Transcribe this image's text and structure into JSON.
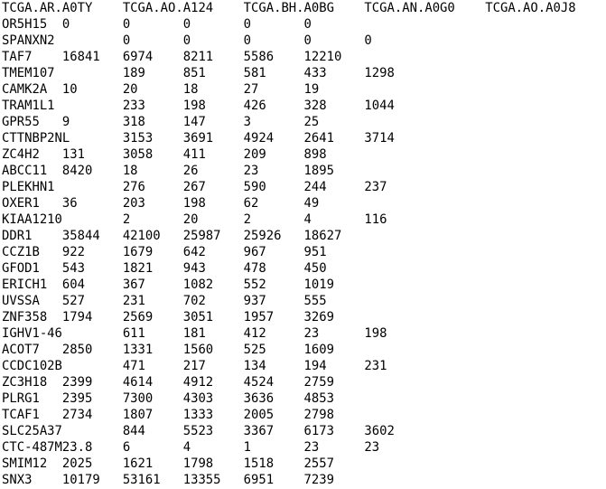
{
  "file": {
    "header": "TCGA.AR.A0TY\tTCGA.AO.A124\tTCGA.BH.A0BG\tTCGA.AN.A0G0\tTCGA.AO.A0J8",
    "lines": [
      "OR5H15\t0\t0\t0\t0\t0",
      "SPANXN2\t\t0\t0\t0\t0\t0",
      "TAF7\t16841\t6974\t8211\t5586\t12210",
      "TMEM107\t\t189\t851\t581\t433\t1298",
      "CAMK2A\t10\t20\t18\t27\t19",
      "TRAM1L1\t\t233\t198\t426\t328\t1044",
      "GPR55\t9\t318\t147\t3\t25",
      "CTTNBP2NL\t3153\t3691\t4924\t2641\t3714",
      "ZC4H2\t131\t3058\t411\t209\t898",
      "ABCC11\t8420\t18\t26\t23\t1895",
      "PLEKHN1\t\t276\t267\t590\t244\t237",
      "OXER1\t36\t203\t198\t62\t49",
      "KIAA1210\t2\t20\t2\t4\t116",
      "DDR1\t35844\t42100\t25987\t25926\t18627",
      "CCZ1B\t922\t1679\t642\t967\t951",
      "GFOD1\t543\t1821\t943\t478\t450",
      "ERICH1\t604\t367\t1082\t552\t1019",
      "UVSSA\t527\t231\t702\t937\t555",
      "ZNF358\t1794\t2569\t3051\t1957\t3269",
      "IGHV1-46\t611\t181\t412\t23\t198",
      "ACOT7\t2850\t1331\t1560\t525\t1609",
      "CCDC102B\t471\t217\t134\t194\t231",
      "ZC3H18\t2399\t4614\t4912\t4524\t2759",
      "PLRG1\t2395\t7300\t4303\t3636\t4853",
      "TCAF1\t2734\t1807\t1333\t2005\t2798",
      "SLC25A37\t844\t5523\t3367\t6173\t3602",
      "CTC-487M23.8\t6\t4\t1\t23\t23",
      "SMIM12\t2025\t1621\t1798\t1518\t2557",
      "SNX3\t10179\t53161\t13355\t6951\t7239"
    ]
  }
}
